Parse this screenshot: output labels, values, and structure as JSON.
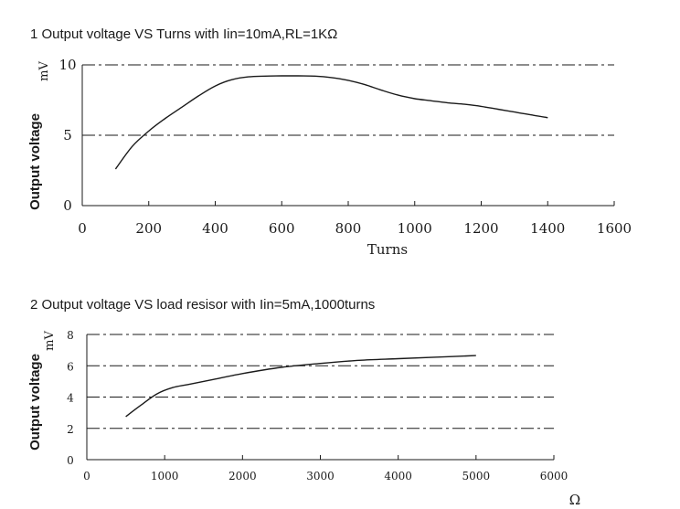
{
  "chart_data": [
    {
      "type": "line",
      "title": "1 Output voltage VS Turns with Iin=10mA,RL=1KΩ",
      "xlabel": "Turns",
      "ylabel": "Output voltage",
      "yunit": "mV",
      "xlim": [
        0,
        1600
      ],
      "ylim": [
        0,
        10
      ],
      "xticks": [
        0,
        200,
        400,
        600,
        800,
        1000,
        1200,
        1400,
        1600
      ],
      "yticks": [
        0,
        5,
        10
      ],
      "grid_y": [
        5,
        10
      ],
      "series": [
        {
          "x": [
            100,
            150,
            200,
            250,
            300,
            350,
            400,
            450,
            500,
            550,
            600,
            650,
            700,
            750,
            800,
            850,
            900,
            950,
            1000,
            1050,
            1100,
            1150,
            1200,
            1250,
            1300,
            1350,
            1400
          ],
          "y": [
            2.6,
            4.2,
            5.3,
            6.2,
            7.0,
            7.8,
            8.5,
            8.95,
            9.15,
            9.2,
            9.22,
            9.22,
            9.2,
            9.1,
            8.9,
            8.6,
            8.2,
            7.85,
            7.6,
            7.45,
            7.3,
            7.2,
            7.05,
            6.85,
            6.65,
            6.45,
            6.25
          ]
        }
      ]
    },
    {
      "type": "line",
      "title": "2 Output voltage VS load resisor with Iin=5mA,1000turns",
      "xlabel": "Ω",
      "ylabel": "Output voltage",
      "yunit": "mV",
      "xlim": [
        0,
        6000
      ],
      "ylim": [
        0,
        8
      ],
      "xticks": [
        0,
        1000,
        2000,
        3000,
        4000,
        5000,
        6000
      ],
      "yticks": [
        0,
        2,
        4,
        6,
        8
      ],
      "grid_y": [
        2,
        4,
        6,
        8
      ],
      "series": [
        {
          "x": [
            500,
            700,
            900,
            1100,
            1300,
            1600,
            2000,
            2500,
            3000,
            3500,
            4000,
            4500,
            5000
          ],
          "y": [
            2.75,
            3.5,
            4.2,
            4.6,
            4.8,
            5.1,
            5.5,
            5.9,
            6.15,
            6.35,
            6.45,
            6.55,
            6.65
          ]
        }
      ]
    }
  ]
}
